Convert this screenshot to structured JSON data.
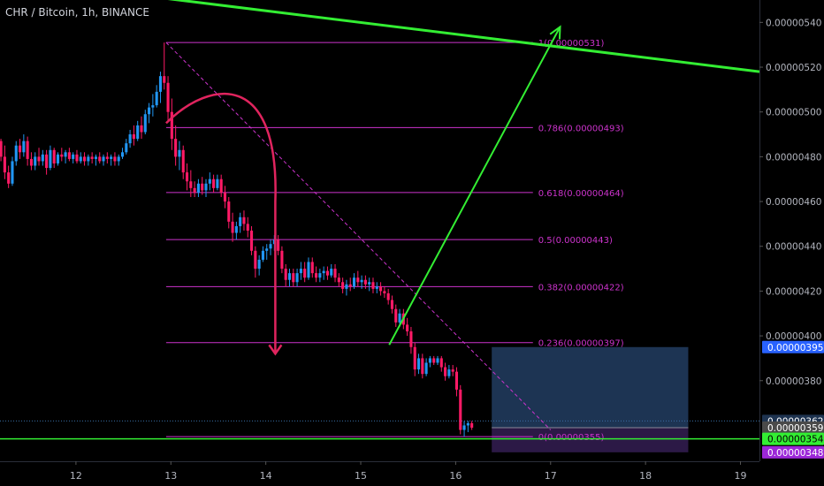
{
  "header": {
    "title": "CHR / Bitcoin, 1h, BINANCE"
  },
  "colors": {
    "background": "#000000",
    "up": "#2196f3",
    "down": "#ff1a66",
    "fib": "#cc33cc",
    "trend": "#33ee33",
    "arrow_red": "#e0245e",
    "box_profit": "#203a5c",
    "box_loss": "#2e1a4a",
    "axis_text": "#b2b5be"
  },
  "chart_data": {
    "type": "candlestick",
    "x_range": [
      11.2,
      19.2
    ],
    "y_range": [
      3.44,
      5.5
    ],
    "y_unit": "1e-6 BTC",
    "x_ticks": [
      "12",
      "13",
      "14",
      "15",
      "16",
      "17",
      "18",
      "19"
    ],
    "y_ticks": [
      "0.00000540",
      "0.00000520",
      "0.00000500",
      "0.00000480",
      "0.00000460",
      "0.00000440",
      "0.00000420",
      "0.00000400",
      "0.00000380"
    ],
    "price_tags": [
      {
        "label": "0.00000395",
        "value": 3.95,
        "bg": "#2962ff",
        "fg": "#ffffff",
        "line": false
      },
      {
        "label": "0.00000362",
        "value": 3.62,
        "bg": "#1e3350",
        "fg": "#ffffff",
        "line": true
      },
      {
        "label": "0.00000359",
        "value": 3.59,
        "bg": "#4a4a4a",
        "fg": "#ffffff",
        "line": false
      },
      {
        "label": "0.00000354",
        "value": 3.54,
        "bg": "#33ee33",
        "fg": "#000000",
        "line": false
      },
      {
        "label": "0.00000348",
        "value": 3.48,
        "bg": "#9c27d8",
        "fg": "#ffffff",
        "line": false
      }
    ],
    "fib_levels": [
      {
        "label": "1(0.00000531)",
        "value": 5.31
      },
      {
        "label": "0.786(0.00000493)",
        "value": 4.93
      },
      {
        "label": "0.618(0.00000464)",
        "value": 4.64
      },
      {
        "label": "0.5(0.00000443)",
        "value": 4.43
      },
      {
        "label": "0.382(0.00000422)",
        "value": 4.22
      },
      {
        "label": "0.236(0.00000397)",
        "value": 3.97
      },
      {
        "label": "0(0.00000355)",
        "value": 3.55
      }
    ],
    "fib_x_range": [
      12.95,
      16.05
    ],
    "horizontal_support": {
      "value": 3.54
    },
    "trendline": {
      "x1": 11.55,
      "y1": 5.58,
      "x2": 19.2,
      "y2": 5.18
    },
    "diagonal_dashed": {
      "x1": 12.95,
      "y1": 5.31,
      "x2": 17.0,
      "y2": 3.58
    },
    "green_arrow": {
      "x1": 15.3,
      "y1": 3.96,
      "x2": 17.1,
      "y2": 5.38
    },
    "red_curve_arrow": {
      "start_x": 12.95,
      "start_y": 4.95,
      "end_x": 14.1,
      "end_y": 3.92
    },
    "position": {
      "x_start": 16.38,
      "x_end": 18.45,
      "entry": 3.59,
      "target": 3.95,
      "stop": 3.48
    },
    "candles": [
      {
        "t": 11.17,
        "o": 4.85,
        "h": 4.89,
        "l": 4.83,
        "c": 4.87
      },
      {
        "t": 11.21,
        "o": 4.87,
        "h": 4.88,
        "l": 4.78,
        "c": 4.8
      },
      {
        "t": 11.25,
        "o": 4.8,
        "h": 4.85,
        "l": 4.7,
        "c": 4.73
      },
      {
        "t": 11.29,
        "o": 4.73,
        "h": 4.76,
        "l": 4.66,
        "c": 4.68
      },
      {
        "t": 11.33,
        "o": 4.68,
        "h": 4.8,
        "l": 4.67,
        "c": 4.78
      },
      {
        "t": 11.37,
        "o": 4.78,
        "h": 4.87,
        "l": 4.76,
        "c": 4.85
      },
      {
        "t": 11.41,
        "o": 4.85,
        "h": 4.88,
        "l": 4.79,
        "c": 4.82
      },
      {
        "t": 11.45,
        "o": 4.82,
        "h": 4.9,
        "l": 4.8,
        "c": 4.87
      },
      {
        "t": 11.49,
        "o": 4.87,
        "h": 4.89,
        "l": 4.76,
        "c": 4.79
      },
      {
        "t": 11.53,
        "o": 4.79,
        "h": 4.82,
        "l": 4.74,
        "c": 4.76
      },
      {
        "t": 11.57,
        "o": 4.76,
        "h": 4.82,
        "l": 4.74,
        "c": 4.8
      },
      {
        "t": 11.61,
        "o": 4.8,
        "h": 4.84,
        "l": 4.76,
        "c": 4.78
      },
      {
        "t": 11.65,
        "o": 4.78,
        "h": 4.83,
        "l": 4.76,
        "c": 4.81
      },
      {
        "t": 11.69,
        "o": 4.81,
        "h": 4.83,
        "l": 4.72,
        "c": 4.75
      },
      {
        "t": 11.73,
        "o": 4.75,
        "h": 4.85,
        "l": 4.74,
        "c": 4.83
      },
      {
        "t": 11.77,
        "o": 4.83,
        "h": 4.84,
        "l": 4.75,
        "c": 4.77
      },
      {
        "t": 11.81,
        "o": 4.77,
        "h": 4.82,
        "l": 4.76,
        "c": 4.81
      },
      {
        "t": 11.85,
        "o": 4.81,
        "h": 4.84,
        "l": 4.78,
        "c": 4.8
      },
      {
        "t": 11.89,
        "o": 4.8,
        "h": 4.83,
        "l": 4.77,
        "c": 4.82
      },
      {
        "t": 11.93,
        "o": 4.82,
        "h": 4.84,
        "l": 4.78,
        "c": 4.79
      },
      {
        "t": 11.97,
        "o": 4.79,
        "h": 4.82,
        "l": 4.77,
        "c": 4.81
      },
      {
        "t": 12.01,
        "o": 4.81,
        "h": 4.83,
        "l": 4.77,
        "c": 4.78
      },
      {
        "t": 12.05,
        "o": 4.78,
        "h": 4.82,
        "l": 4.77,
        "c": 4.8
      },
      {
        "t": 12.09,
        "o": 4.8,
        "h": 4.82,
        "l": 4.76,
        "c": 4.78
      },
      {
        "t": 12.13,
        "o": 4.78,
        "h": 4.81,
        "l": 4.76,
        "c": 4.8
      },
      {
        "t": 12.17,
        "o": 4.8,
        "h": 4.82,
        "l": 4.77,
        "c": 4.79
      },
      {
        "t": 12.21,
        "o": 4.79,
        "h": 4.81,
        "l": 4.76,
        "c": 4.8
      },
      {
        "t": 12.25,
        "o": 4.8,
        "h": 4.82,
        "l": 4.77,
        "c": 4.78
      },
      {
        "t": 12.29,
        "o": 4.78,
        "h": 4.81,
        "l": 4.76,
        "c": 4.8
      },
      {
        "t": 12.33,
        "o": 4.8,
        "h": 4.82,
        "l": 4.77,
        "c": 4.79
      },
      {
        "t": 12.37,
        "o": 4.79,
        "h": 4.81,
        "l": 4.76,
        "c": 4.8
      },
      {
        "t": 12.41,
        "o": 4.8,
        "h": 4.82,
        "l": 4.76,
        "c": 4.78
      },
      {
        "t": 12.45,
        "o": 4.78,
        "h": 4.81,
        "l": 4.76,
        "c": 4.8
      },
      {
        "t": 12.49,
        "o": 4.8,
        "h": 4.84,
        "l": 4.79,
        "c": 4.82
      },
      {
        "t": 12.53,
        "o": 4.82,
        "h": 4.88,
        "l": 4.81,
        "c": 4.86
      },
      {
        "t": 12.57,
        "o": 4.86,
        "h": 4.92,
        "l": 4.84,
        "c": 4.9
      },
      {
        "t": 12.61,
        "o": 4.9,
        "h": 4.94,
        "l": 4.85,
        "c": 4.88
      },
      {
        "t": 12.65,
        "o": 4.88,
        "h": 4.96,
        "l": 4.87,
        "c": 4.94
      },
      {
        "t": 12.69,
        "o": 4.94,
        "h": 4.98,
        "l": 4.88,
        "c": 4.91
      },
      {
        "t": 12.73,
        "o": 4.91,
        "h": 5.01,
        "l": 4.9,
        "c": 4.99
      },
      {
        "t": 12.77,
        "o": 4.99,
        "h": 5.04,
        "l": 4.95,
        "c": 5.02
      },
      {
        "t": 12.81,
        "o": 5.02,
        "h": 5.08,
        "l": 4.98,
        "c": 5.03
      },
      {
        "t": 12.85,
        "o": 5.03,
        "h": 5.12,
        "l": 5.02,
        "c": 5.09
      },
      {
        "t": 12.89,
        "o": 5.09,
        "h": 5.18,
        "l": 5.04,
        "c": 5.16
      },
      {
        "t": 12.93,
        "o": 5.16,
        "h": 5.31,
        "l": 5.1,
        "c": 5.13
      },
      {
        "t": 12.97,
        "o": 5.13,
        "h": 5.16,
        "l": 4.96,
        "c": 5.0
      },
      {
        "t": 13.01,
        "o": 5.0,
        "h": 5.06,
        "l": 4.83,
        "c": 4.88
      },
      {
        "t": 13.05,
        "o": 4.88,
        "h": 4.94,
        "l": 4.76,
        "c": 4.8
      },
      {
        "t": 13.09,
        "o": 4.8,
        "h": 4.87,
        "l": 4.74,
        "c": 4.83
      },
      {
        "t": 13.13,
        "o": 4.83,
        "h": 4.85,
        "l": 4.7,
        "c": 4.73
      },
      {
        "t": 13.17,
        "o": 4.73,
        "h": 4.77,
        "l": 4.65,
        "c": 4.69
      },
      {
        "t": 13.21,
        "o": 4.69,
        "h": 4.74,
        "l": 4.62,
        "c": 4.66
      },
      {
        "t": 13.25,
        "o": 4.66,
        "h": 4.69,
        "l": 4.62,
        "c": 4.64
      },
      {
        "t": 13.29,
        "o": 4.64,
        "h": 4.7,
        "l": 4.62,
        "c": 4.68
      },
      {
        "t": 13.33,
        "o": 4.68,
        "h": 4.71,
        "l": 4.63,
        "c": 4.65
      },
      {
        "t": 13.37,
        "o": 4.65,
        "h": 4.7,
        "l": 4.62,
        "c": 4.68
      },
      {
        "t": 13.41,
        "o": 4.68,
        "h": 4.73,
        "l": 4.65,
        "c": 4.7
      },
      {
        "t": 13.45,
        "o": 4.7,
        "h": 4.72,
        "l": 4.64,
        "c": 4.66
      },
      {
        "t": 13.49,
        "o": 4.66,
        "h": 4.72,
        "l": 4.65,
        "c": 4.7
      },
      {
        "t": 13.53,
        "o": 4.7,
        "h": 4.72,
        "l": 4.62,
        "c": 4.64
      },
      {
        "t": 13.57,
        "o": 4.64,
        "h": 4.67,
        "l": 4.57,
        "c": 4.6
      },
      {
        "t": 13.61,
        "o": 4.6,
        "h": 4.62,
        "l": 4.48,
        "c": 4.51
      },
      {
        "t": 13.65,
        "o": 4.51,
        "h": 4.55,
        "l": 4.42,
        "c": 4.46
      },
      {
        "t": 13.69,
        "o": 4.46,
        "h": 4.51,
        "l": 4.43,
        "c": 4.49
      },
      {
        "t": 13.73,
        "o": 4.49,
        "h": 4.55,
        "l": 4.46,
        "c": 4.53
      },
      {
        "t": 13.77,
        "o": 4.53,
        "h": 4.56,
        "l": 4.47,
        "c": 4.5
      },
      {
        "t": 13.81,
        "o": 4.5,
        "h": 4.53,
        "l": 4.44,
        "c": 4.47
      },
      {
        "t": 13.85,
        "o": 4.47,
        "h": 4.49,
        "l": 4.36,
        "c": 4.38
      },
      {
        "t": 13.89,
        "o": 4.38,
        "h": 4.4,
        "l": 4.26,
        "c": 4.3
      },
      {
        "t": 13.93,
        "o": 4.3,
        "h": 4.36,
        "l": 4.27,
        "c": 4.34
      },
      {
        "t": 13.97,
        "o": 4.34,
        "h": 4.4,
        "l": 4.33,
        "c": 4.38
      },
      {
        "t": 14.01,
        "o": 4.38,
        "h": 4.41,
        "l": 4.34,
        "c": 4.39
      },
      {
        "t": 14.05,
        "o": 4.39,
        "h": 4.43,
        "l": 4.36,
        "c": 4.41
      },
      {
        "t": 14.09,
        "o": 4.41,
        "h": 4.45,
        "l": 4.38,
        "c": 4.43
      },
      {
        "t": 14.13,
        "o": 4.43,
        "h": 4.45,
        "l": 4.36,
        "c": 4.38
      },
      {
        "t": 14.17,
        "o": 4.38,
        "h": 4.4,
        "l": 4.28,
        "c": 4.3
      },
      {
        "t": 14.21,
        "o": 4.3,
        "h": 4.32,
        "l": 4.22,
        "c": 4.25
      },
      {
        "t": 14.25,
        "o": 4.25,
        "h": 4.3,
        "l": 4.22,
        "c": 4.28
      },
      {
        "t": 14.29,
        "o": 4.28,
        "h": 4.3,
        "l": 4.22,
        "c": 4.24
      },
      {
        "t": 14.33,
        "o": 4.24,
        "h": 4.3,
        "l": 4.22,
        "c": 4.28
      },
      {
        "t": 14.37,
        "o": 4.28,
        "h": 4.33,
        "l": 4.25,
        "c": 4.3
      },
      {
        "t": 14.41,
        "o": 4.3,
        "h": 4.33,
        "l": 4.24,
        "c": 4.26
      },
      {
        "t": 14.45,
        "o": 4.26,
        "h": 4.35,
        "l": 4.25,
        "c": 4.33
      },
      {
        "t": 14.49,
        "o": 4.33,
        "h": 4.35,
        "l": 4.26,
        "c": 4.28
      },
      {
        "t": 14.53,
        "o": 4.28,
        "h": 4.31,
        "l": 4.24,
        "c": 4.26
      },
      {
        "t": 14.57,
        "o": 4.26,
        "h": 4.3,
        "l": 4.24,
        "c": 4.28
      },
      {
        "t": 14.61,
        "o": 4.28,
        "h": 4.31,
        "l": 4.25,
        "c": 4.29
      },
      {
        "t": 14.65,
        "o": 4.29,
        "h": 4.31,
        "l": 4.25,
        "c": 4.27
      },
      {
        "t": 14.69,
        "o": 4.27,
        "h": 4.32,
        "l": 4.26,
        "c": 4.3
      },
      {
        "t": 14.73,
        "o": 4.3,
        "h": 4.32,
        "l": 4.24,
        "c": 4.26
      },
      {
        "t": 14.77,
        "o": 4.26,
        "h": 4.28,
        "l": 4.22,
        "c": 4.24
      },
      {
        "t": 14.81,
        "o": 4.24,
        "h": 4.26,
        "l": 4.19,
        "c": 4.21
      },
      {
        "t": 14.85,
        "o": 4.21,
        "h": 4.25,
        "l": 4.18,
        "c": 4.23
      },
      {
        "t": 14.89,
        "o": 4.23,
        "h": 4.26,
        "l": 4.2,
        "c": 4.22
      },
      {
        "t": 14.93,
        "o": 4.22,
        "h": 4.28,
        "l": 4.21,
        "c": 4.26
      },
      {
        "t": 14.97,
        "o": 4.26,
        "h": 4.29,
        "l": 4.22,
        "c": 4.24
      },
      {
        "t": 15.01,
        "o": 4.24,
        "h": 4.27,
        "l": 4.21,
        "c": 4.25
      },
      {
        "t": 15.05,
        "o": 4.25,
        "h": 4.27,
        "l": 4.21,
        "c": 4.23
      },
      {
        "t": 15.09,
        "o": 4.23,
        "h": 4.26,
        "l": 4.2,
        "c": 4.24
      },
      {
        "t": 15.13,
        "o": 4.24,
        "h": 4.26,
        "l": 4.19,
        "c": 4.21
      },
      {
        "t": 15.17,
        "o": 4.21,
        "h": 4.24,
        "l": 4.19,
        "c": 4.22
      },
      {
        "t": 15.21,
        "o": 4.22,
        "h": 4.24,
        "l": 4.18,
        "c": 4.2
      },
      {
        "t": 15.25,
        "o": 4.2,
        "h": 4.22,
        "l": 4.17,
        "c": 4.19
      },
      {
        "t": 15.29,
        "o": 4.19,
        "h": 4.21,
        "l": 4.14,
        "c": 4.16
      },
      {
        "t": 15.33,
        "o": 4.16,
        "h": 4.18,
        "l": 4.1,
        "c": 4.12
      },
      {
        "t": 15.37,
        "o": 4.12,
        "h": 4.14,
        "l": 4.04,
        "c": 4.06
      },
      {
        "t": 15.41,
        "o": 4.06,
        "h": 4.12,
        "l": 4.04,
        "c": 4.1
      },
      {
        "t": 15.45,
        "o": 4.1,
        "h": 4.12,
        "l": 4.03,
        "c": 4.05
      },
      {
        "t": 15.49,
        "o": 4.05,
        "h": 4.08,
        "l": 4.0,
        "c": 4.02
      },
      {
        "t": 15.53,
        "o": 4.02,
        "h": 4.04,
        "l": 3.92,
        "c": 3.95
      },
      {
        "t": 15.57,
        "o": 3.95,
        "h": 3.97,
        "l": 3.82,
        "c": 3.85
      },
      {
        "t": 15.61,
        "o": 3.85,
        "h": 3.92,
        "l": 3.83,
        "c": 3.9
      },
      {
        "t": 15.65,
        "o": 3.9,
        "h": 3.92,
        "l": 3.81,
        "c": 3.83
      },
      {
        "t": 15.69,
        "o": 3.83,
        "h": 3.9,
        "l": 3.82,
        "c": 3.88
      },
      {
        "t": 15.73,
        "o": 3.88,
        "h": 3.91,
        "l": 3.86,
        "c": 3.9
      },
      {
        "t": 15.77,
        "o": 3.9,
        "h": 3.91,
        "l": 3.87,
        "c": 3.88
      },
      {
        "t": 15.81,
        "o": 3.88,
        "h": 3.91,
        "l": 3.87,
        "c": 3.9
      },
      {
        "t": 15.85,
        "o": 3.9,
        "h": 3.91,
        "l": 3.84,
        "c": 3.86
      },
      {
        "t": 15.89,
        "o": 3.86,
        "h": 3.88,
        "l": 3.8,
        "c": 3.82
      },
      {
        "t": 15.93,
        "o": 3.82,
        "h": 3.87,
        "l": 3.81,
        "c": 3.85
      },
      {
        "t": 15.97,
        "o": 3.85,
        "h": 3.87,
        "l": 3.82,
        "c": 3.84
      },
      {
        "t": 16.01,
        "o": 3.84,
        "h": 3.86,
        "l": 3.73,
        "c": 3.76
      },
      {
        "t": 16.05,
        "o": 3.76,
        "h": 3.78,
        "l": 3.56,
        "c": 3.58
      },
      {
        "t": 16.09,
        "o": 3.58,
        "h": 3.62,
        "l": 3.55,
        "c": 3.6
      },
      {
        "t": 16.13,
        "o": 3.6,
        "h": 3.62,
        "l": 3.57,
        "c": 3.61
      },
      {
        "t": 16.17,
        "o": 3.61,
        "h": 3.62,
        "l": 3.58,
        "c": 3.59
      }
    ]
  }
}
